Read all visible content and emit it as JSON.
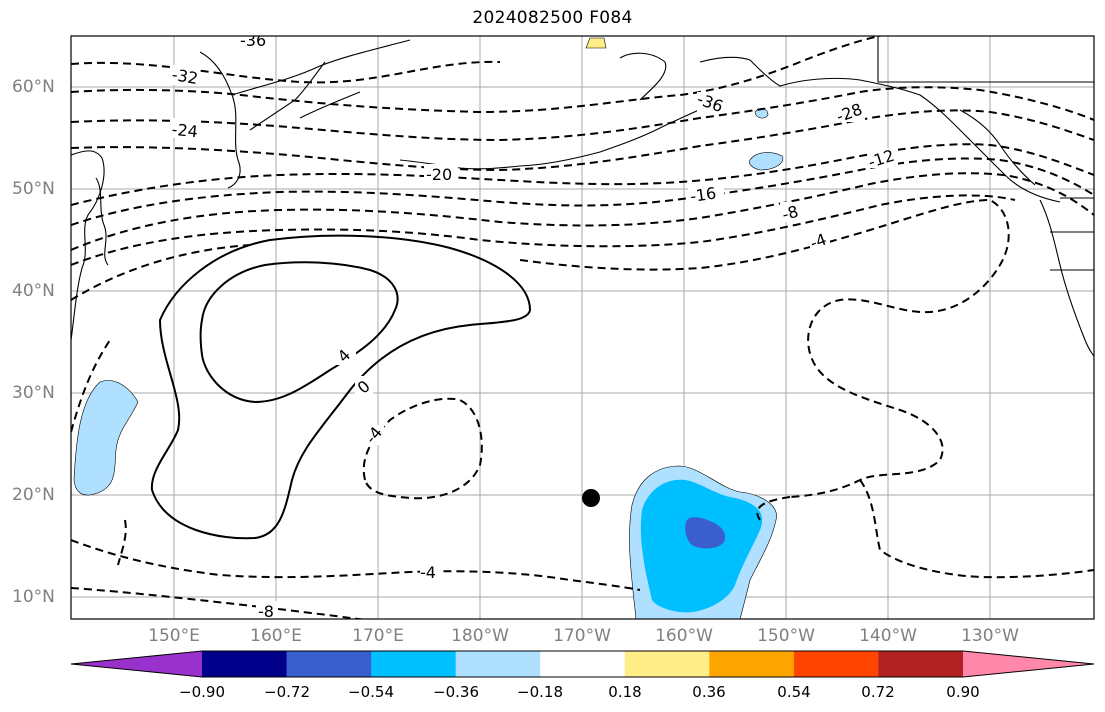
{
  "title": "2024082500 F084",
  "lat_labels": [
    "60°N",
    "50°N",
    "40°N",
    "30°N",
    "20°N",
    "10°N"
  ],
  "lon_labels": [
    "150°E",
    "160°E",
    "170°E",
    "180°W",
    "170°W",
    "160°W",
    "150°W",
    "140°W",
    "130°W"
  ],
  "contour_labels": [
    "-36",
    "-32",
    "-28",
    "-24",
    "-20",
    "-16",
    "-12",
    "-8",
    "-4",
    "0",
    "4",
    "-4",
    "-4",
    "-8",
    "-36"
  ],
  "colorbar": {
    "ticks": [
      "−0.90",
      "−0.72",
      "−0.54",
      "−0.36",
      "−0.18",
      "0.18",
      "0.36",
      "0.54",
      "0.72",
      "0.90"
    ],
    "colors": [
      "#9932cc",
      "#00008b",
      "#3a5fcd",
      "#00bfff",
      "#b0e0ff",
      "#ffffff",
      "#ffee88",
      "#ffa500",
      "#ff4500",
      "#b22222",
      "#ff88aa"
    ]
  },
  "storm_marker": {
    "lat": 20,
    "lon": -169
  }
}
